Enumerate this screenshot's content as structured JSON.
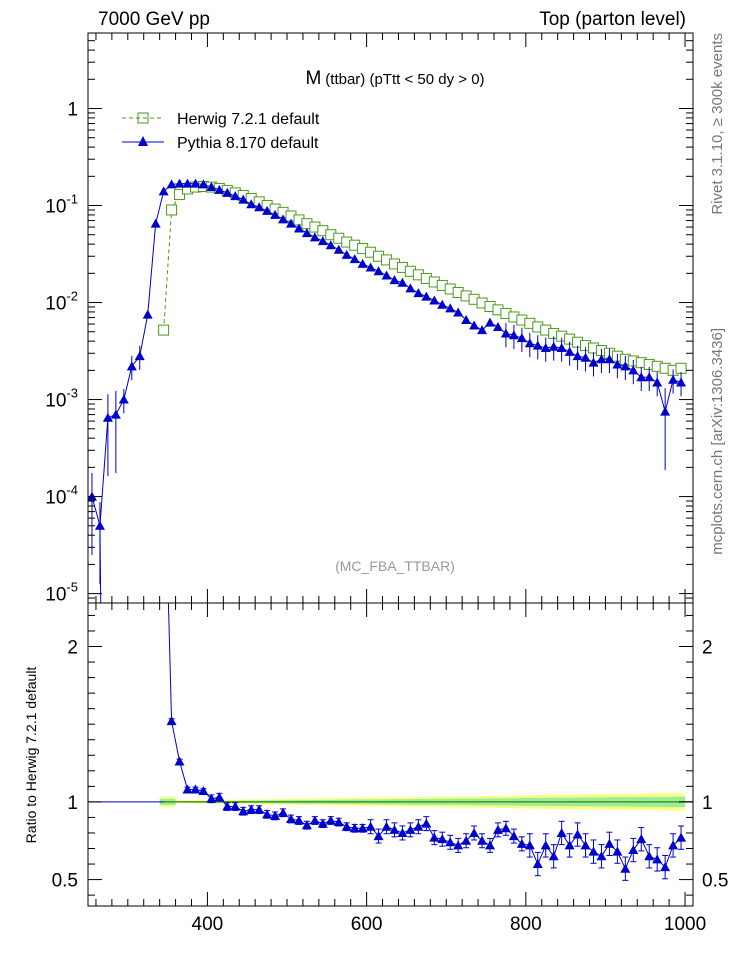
{
  "header": {
    "left": "7000 GeV pp",
    "right": "Top (parton level)"
  },
  "side": {
    "rivet": "Rivet 3.1.10, ≥ 300k events",
    "mcplots": "mcplots.cern.ch [arXiv:1306.3436]"
  },
  "chart_data": [
    {
      "type": "line",
      "title": "M (ttbar) (pTtt < 50 dy > 0)",
      "title_main": "M",
      "title_sub": "(ttbar) (pTtt < 50 dy > 0)",
      "watermark": "(MC_FBA_TTBAR)",
      "xlabel": "",
      "ylabel": "",
      "yscale": "log",
      "xlim": [
        250,
        1010
      ],
      "ylim": [
        8e-06,
        6
      ],
      "y_ticks": [
        {
          "value": 1,
          "label": "1"
        },
        {
          "value": 0.1,
          "label": "10",
          "exp": "-1"
        },
        {
          "value": 0.01,
          "label": "10",
          "exp": "-2"
        },
        {
          "value": 0.001,
          "label": "10",
          "exp": "-3"
        },
        {
          "value": 0.0001,
          "label": "10",
          "exp": "-4"
        },
        {
          "value": 1e-05,
          "label": "10",
          "exp": "-5"
        }
      ],
      "series": [
        {
          "name": "Herwig 7.2.1 default",
          "color": "#4a9a1e",
          "style": "dashed",
          "marker": "open-square",
          "x": [
            345,
            355,
            365,
            375,
            385,
            395,
            405,
            415,
            425,
            435,
            445,
            455,
            465,
            475,
            485,
            495,
            505,
            515,
            525,
            535,
            545,
            555,
            565,
            575,
            585,
            595,
            605,
            615,
            625,
            635,
            645,
            655,
            665,
            675,
            685,
            695,
            705,
            715,
            725,
            735,
            745,
            755,
            765,
            775,
            785,
            795,
            805,
            815,
            825,
            835,
            845,
            855,
            865,
            875,
            885,
            895,
            905,
            915,
            925,
            935,
            945,
            955,
            965,
            975,
            985,
            995
          ],
          "values": [
            0.0052,
            0.09,
            0.13,
            0.148,
            0.155,
            0.157,
            0.155,
            0.15,
            0.143,
            0.135,
            0.127,
            0.118,
            0.109,
            0.1,
            0.092,
            0.085,
            0.078,
            0.071,
            0.065,
            0.06,
            0.055,
            0.05,
            0.046,
            0.042,
            0.039,
            0.036,
            0.033,
            0.03,
            0.0275,
            0.025,
            0.023,
            0.021,
            0.0193,
            0.0177,
            0.0163,
            0.015,
            0.0138,
            0.0127,
            0.0117,
            0.0108,
            0.0099,
            0.0091,
            0.0084,
            0.0077,
            0.0071,
            0.0066,
            0.0061,
            0.0056,
            0.0052,
            0.0048,
            0.0045,
            0.0042,
            0.0039,
            0.0036,
            0.0034,
            0.0032,
            0.003,
            0.0028,
            0.0026,
            0.0025,
            0.0024,
            0.0023,
            0.0022,
            0.0021,
            0.002,
            0.0021
          ]
        },
        {
          "name": "Pythia 8.170 default",
          "color": "#0000cc",
          "style": "solid",
          "marker": "filled-triangle",
          "x": [
            255,
            265,
            275,
            285,
            295,
            305,
            315,
            325,
            335,
            345,
            355,
            365,
            375,
            385,
            395,
            405,
            415,
            425,
            435,
            445,
            455,
            465,
            475,
            485,
            495,
            505,
            515,
            525,
            535,
            545,
            555,
            565,
            575,
            585,
            595,
            605,
            615,
            625,
            635,
            645,
            655,
            665,
            675,
            685,
            695,
            705,
            715,
            725,
            735,
            745,
            755,
            765,
            775,
            785,
            795,
            805,
            815,
            825,
            835,
            845,
            855,
            865,
            875,
            885,
            895,
            905,
            915,
            925,
            935,
            945,
            955,
            965,
            975,
            985,
            995
          ],
          "values": [
            0.0001,
            5e-05,
            0.00065,
            0.0007,
            0.001,
            0.0022,
            0.0028,
            0.0075,
            0.065,
            0.14,
            0.165,
            0.168,
            0.168,
            0.168,
            0.165,
            0.155,
            0.145,
            0.135,
            0.125,
            0.115,
            0.103,
            0.096,
            0.088,
            0.08,
            0.072,
            0.065,
            0.058,
            0.052,
            0.047,
            0.043,
            0.039,
            0.035,
            0.031,
            0.028,
            0.025,
            0.023,
            0.021,
            0.019,
            0.017,
            0.016,
            0.014,
            0.0125,
            0.0115,
            0.0105,
            0.0095,
            0.0087,
            0.0079,
            0.0066,
            0.0058,
            0.0052,
            0.0062,
            0.0056,
            0.0048,
            0.0046,
            0.0043,
            0.0038,
            0.0036,
            0.0034,
            0.0035,
            0.0034,
            0.0031,
            0.0028,
            0.0027,
            0.0024,
            0.0026,
            0.0026,
            0.0023,
            0.0022,
            0.002,
            0.0017,
            0.0017,
            0.0015,
            0.00075,
            0.0016,
            0.0015
          ]
        }
      ]
    },
    {
      "type": "line",
      "title": "",
      "xlabel": "",
      "ylabel": "Ratio to Herwig 7.2.1 default",
      "xlim": [
        250,
        1010
      ],
      "ylim": [
        0.33,
        2.28
      ],
      "x_ticks": [
        400,
        600,
        800,
        1000
      ],
      "y_ticks": [
        {
          "value": 0.5,
          "label": "0.5"
        },
        {
          "value": 1,
          "label": "1"
        },
        {
          "value": 2,
          "label": "2"
        }
      ],
      "reference": {
        "name": "Herwig 7.2.1 default",
        "value": 1,
        "color": "#4a9a1e",
        "band_colors": [
          "#ffff88",
          "#99ee99"
        ]
      },
      "series": [
        {
          "name": "Pythia 8.170 default",
          "color": "#0000cc",
          "x": [
            355,
            365,
            375,
            385,
            395,
            405,
            415,
            425,
            435,
            445,
            455,
            465,
            475,
            485,
            495,
            505,
            515,
            525,
            535,
            545,
            555,
            565,
            575,
            585,
            595,
            605,
            615,
            625,
            635,
            645,
            655,
            665,
            675,
            685,
            695,
            705,
            715,
            725,
            735,
            745,
            755,
            765,
            775,
            785,
            795,
            805,
            815,
            825,
            835,
            845,
            855,
            865,
            875,
            885,
            895,
            905,
            915,
            925,
            935,
            945,
            955,
            965,
            975,
            985,
            995
          ],
          "values": [
            1.52,
            1.26,
            1.08,
            1.08,
            1.07,
            1.02,
            1.03,
            0.97,
            0.97,
            0.94,
            0.95,
            0.95,
            0.92,
            0.91,
            0.93,
            0.89,
            0.88,
            0.85,
            0.88,
            0.86,
            0.88,
            0.87,
            0.84,
            0.83,
            0.83,
            0.84,
            0.78,
            0.84,
            0.82,
            0.8,
            0.82,
            0.84,
            0.86,
            0.77,
            0.76,
            0.74,
            0.72,
            0.75,
            0.8,
            0.75,
            0.72,
            0.82,
            0.83,
            0.78,
            0.73,
            0.72,
            0.6,
            0.72,
            0.65,
            0.8,
            0.72,
            0.79,
            0.72,
            0.68,
            0.65,
            0.73,
            0.68,
            0.57,
            0.69,
            0.76,
            0.65,
            0.63,
            0.58,
            0.72,
            0.77
          ]
        }
      ]
    }
  ]
}
